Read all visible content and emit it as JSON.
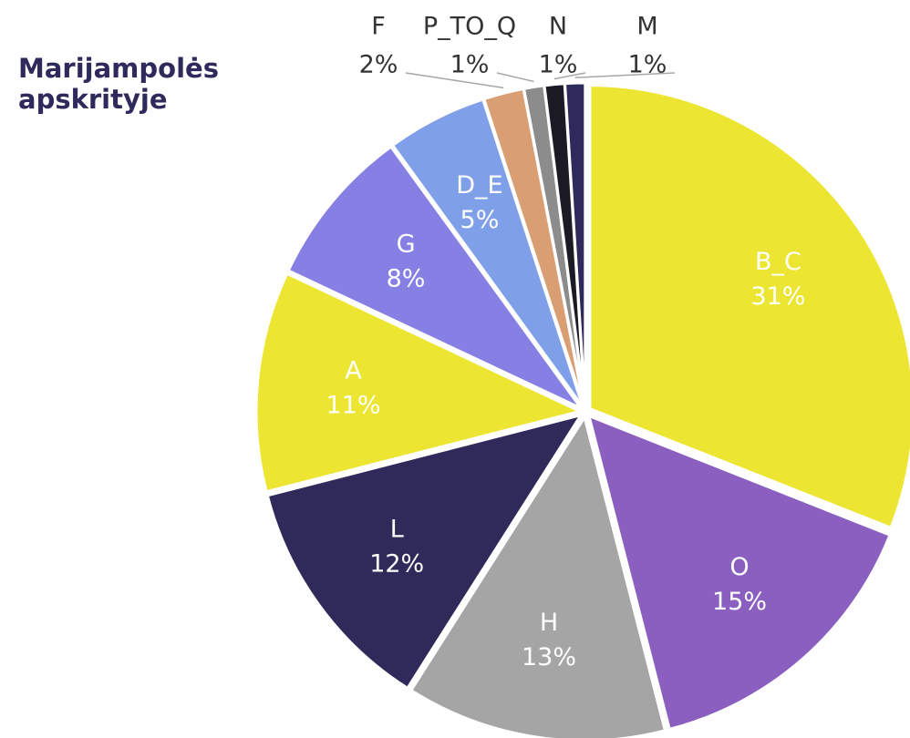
{
  "chart_data": {
    "type": "pie",
    "title": "Marijampolės apskrityje",
    "categories": [
      "B_C",
      "O",
      "H",
      "L",
      "A",
      "G",
      "D_E",
      "F",
      "P_TO_Q",
      "N",
      "M"
    ],
    "values": [
      31,
      15,
      13,
      12,
      11,
      8,
      5,
      2,
      1,
      1,
      1
    ],
    "value_labels": [
      "31%",
      "15%",
      "13%",
      "12%",
      "11%",
      "8%",
      "5%",
      "2%",
      "1%",
      "1%",
      "1%"
    ],
    "colors": [
      "#ece531",
      "#8a5fc0",
      "#a5a5a5",
      "#302a5a",
      "#ece531",
      "#8780e4",
      "#7f9fe9",
      "#d99e72",
      "#8c8c8c",
      "#1c1a24",
      "#2f2a5c"
    ]
  }
}
